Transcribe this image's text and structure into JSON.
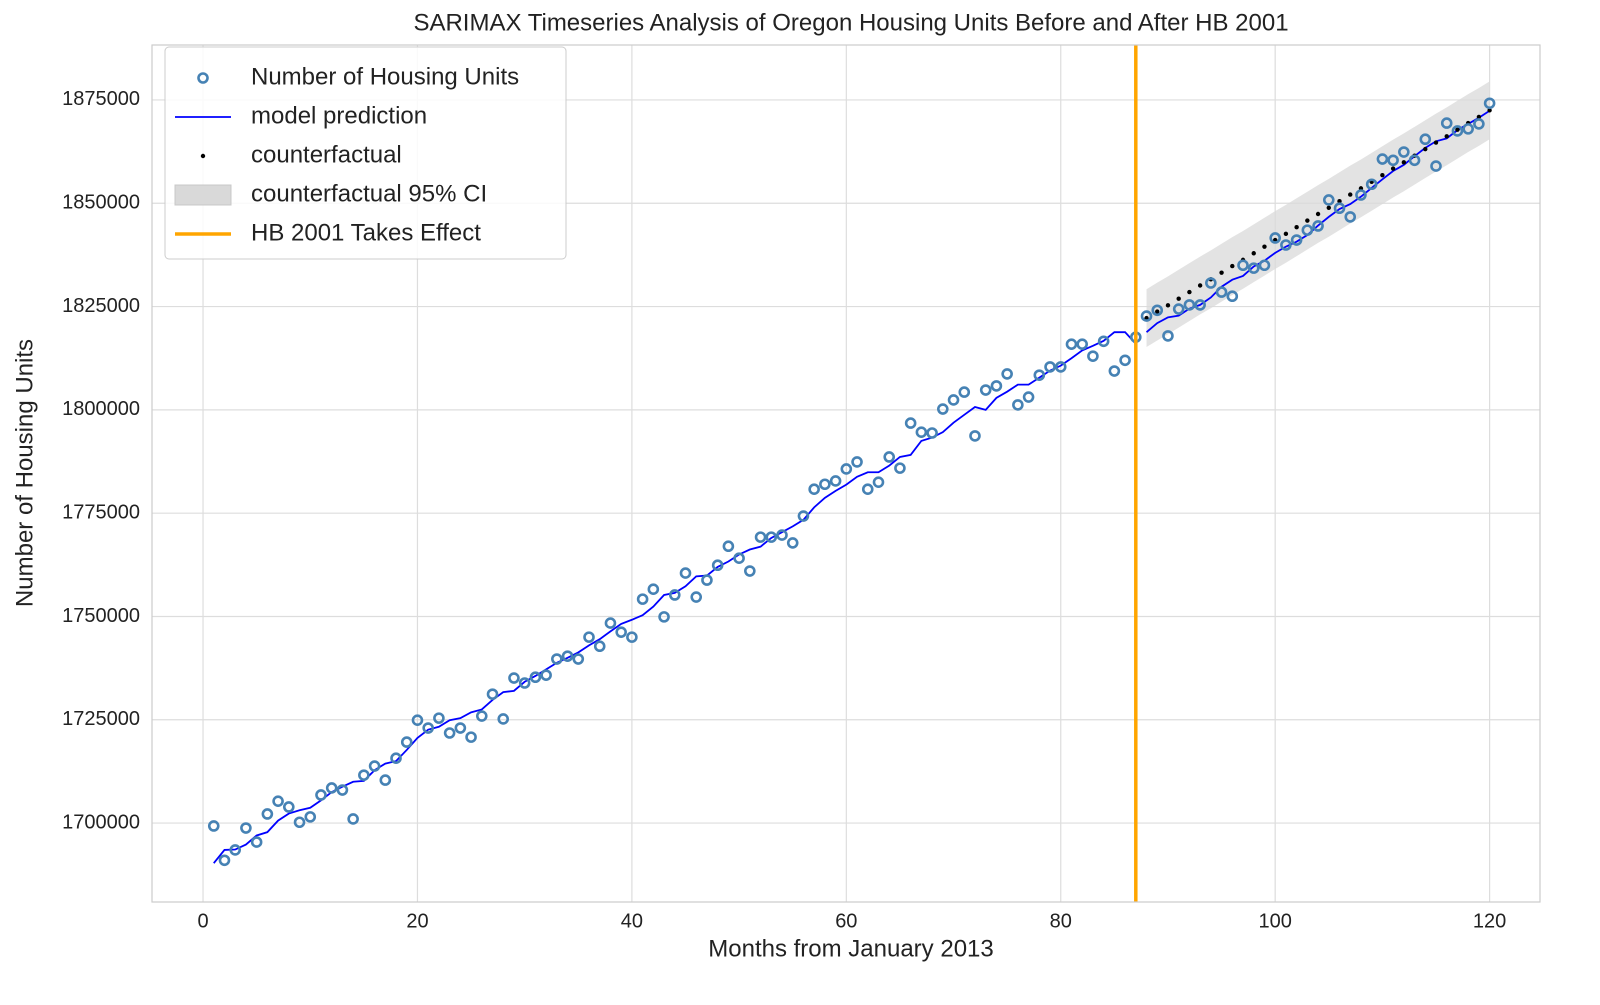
{
  "chart_data": {
    "type": "timeseries",
    "title": "SARIMAX Timeseries Analysis of Oregon Housing Units Before and After HB 2001",
    "xlabel": "Months from January 2013",
    "ylabel": "Number of Housing Units",
    "xlim": [
      -4.76,
      124.7
    ],
    "ylim": [
      1680900,
      1888300
    ],
    "xticks": [
      0,
      20,
      40,
      60,
      80,
      100,
      120
    ],
    "yticks": [
      1700000,
      1725000,
      1750000,
      1775000,
      1800000,
      1825000,
      1850000,
      1875000
    ],
    "grid": true,
    "legend": "upper left",
    "x": [
      1,
      2,
      3,
      4,
      5,
      6,
      7,
      8,
      9,
      10,
      11,
      12,
      13,
      14,
      15,
      16,
      17,
      18,
      19,
      20,
      21,
      22,
      23,
      24,
      25,
      26,
      27,
      28,
      29,
      30,
      31,
      32,
      33,
      34,
      35,
      36,
      37,
      38,
      39,
      40,
      41,
      42,
      43,
      44,
      45,
      46,
      47,
      48,
      49,
      50,
      51,
      52,
      53,
      54,
      55,
      56,
      57,
      58,
      59,
      60,
      61,
      62,
      63,
      64,
      65,
      66,
      67,
      68,
      69,
      70,
      71,
      72,
      73,
      74,
      75,
      76,
      77,
      78,
      79,
      80,
      81,
      82,
      83,
      84,
      85,
      86,
      87,
      88,
      89,
      90,
      91,
      92,
      93,
      94,
      95,
      96,
      97,
      98,
      99,
      100,
      101,
      102,
      103,
      104,
      105,
      106,
      107,
      108,
      109,
      110,
      111,
      112,
      113,
      114,
      115,
      116,
      117,
      118,
      119,
      120
    ],
    "series": [
      {
        "name": "Number of Housing Units",
        "type": "scatter",
        "color": "#4682b4",
        "values": [
          1699300,
          1691000,
          1693500,
          1698800,
          1695400,
          1702200,
          1705300,
          1703900,
          1700200,
          1701500,
          1706800,
          1708500,
          1708000,
          1701000,
          1711600,
          1713800,
          1710400,
          1715700,
          1719600,
          1724900,
          1723000,
          1725400,
          1721800,
          1723000,
          1720800,
          1725900,
          1731200,
          1725200,
          1735100,
          1733900,
          1735300,
          1735800,
          1739700,
          1740400,
          1739700,
          1745000,
          1742800,
          1748400,
          1746200,
          1745000,
          1754200,
          1756600,
          1749900,
          1755200,
          1760500,
          1754700,
          1758800,
          1762400,
          1767000,
          1764100,
          1761000,
          1769200,
          1769200,
          1769700,
          1767800,
          1774300,
          1780800,
          1782000,
          1782800,
          1785700,
          1787400,
          1780800,
          1782500,
          1788600,
          1785900,
          1796800,
          1794600,
          1794400,
          1800200,
          1802400,
          1804300,
          1793700,
          1804800,
          1805800,
          1808700,
          1801200,
          1803100,
          1808400,
          1810400,
          1810400,
          1815900,
          1815900,
          1813000,
          1816600,
          1809400,
          1812000,
          1817600,
          1822700,
          1824100,
          1817900,
          1824400,
          1825400,
          1825400,
          1830700,
          1828500,
          1827500,
          1835000,
          1834300,
          1835000,
          1841600,
          1839900,
          1841100,
          1843500,
          1844500,
          1850800,
          1848800,
          1846700,
          1852000,
          1854600,
          1860700,
          1860400,
          1862400,
          1860400,
          1865500,
          1859000,
          1869400,
          1867500,
          1868000,
          1869200,
          1874200
        ]
      },
      {
        "name": "model prediction",
        "type": "line",
        "color": "#0000ff",
        "values": [
          1690300,
          1693500,
          1693600,
          1694800,
          1697000,
          1697800,
          1700600,
          1702300,
          1703100,
          1703700,
          1705500,
          1707500,
          1708800,
          1710000,
          1710200,
          1712800,
          1714400,
          1715000,
          1717700,
          1720600,
          1722600,
          1723300,
          1724900,
          1725400,
          1726800,
          1727500,
          1729800,
          1731700,
          1732000,
          1734200,
          1735600,
          1737200,
          1738800,
          1740000,
          1741300,
          1743000,
          1744500,
          1746400,
          1748200,
          1749200,
          1750300,
          1752400,
          1755200,
          1755700,
          1757300,
          1759700,
          1759900,
          1762000,
          1763300,
          1765000,
          1766200,
          1766900,
          1769000,
          1770400,
          1771800,
          1773400,
          1776400,
          1778700,
          1780400,
          1781900,
          1783800,
          1784900,
          1784900,
          1786500,
          1788600,
          1789100,
          1792500,
          1793300,
          1794600,
          1796900,
          1798800,
          1800700,
          1800000,
          1802900,
          1804400,
          1806100,
          1806100,
          1807800,
          1809500,
          1810700,
          1812500,
          1814400,
          1815500,
          1816700,
          1818800,
          1818800,
          1816000,
          1818800,
          1821000,
          1822400,
          1822800,
          1824500,
          1825400,
          1827200,
          1829800,
          1831500,
          1832400,
          1834700,
          1836100,
          1838000,
          1839500,
          1840700,
          1842300,
          1844600,
          1846700,
          1848600,
          1849800,
          1851600,
          1853700,
          1855800,
          1857800,
          1859300,
          1861400,
          1863400,
          1865000,
          1865700,
          1867700,
          1869200,
          1870700,
          1872400
        ]
      },
      {
        "name": "counterfactual",
        "type": "dots",
        "color": "#000000",
        "x": [
          88,
          89,
          90,
          91,
          92,
          93,
          94,
          95,
          96,
          97,
          98,
          99,
          100,
          101,
          102,
          103,
          104,
          105,
          106,
          107,
          108,
          109,
          110,
          111,
          112,
          113,
          114,
          115,
          116,
          117,
          118,
          119,
          120
        ],
        "values": [
          1822200,
          1823800,
          1825300,
          1826900,
          1828500,
          1830100,
          1831600,
          1833200,
          1834800,
          1836300,
          1837900,
          1839500,
          1841100,
          1842600,
          1844200,
          1845800,
          1847400,
          1848900,
          1850500,
          1852100,
          1853600,
          1855200,
          1856800,
          1858400,
          1859900,
          1861500,
          1863100,
          1864700,
          1866200,
          1867800,
          1869400,
          1870900,
          1872500
        ]
      },
      {
        "name": "counterfactual 95% CI",
        "type": "band",
        "color": "#d9d9d9",
        "x": [
          88,
          89,
          90,
          91,
          92,
          93,
          94,
          95,
          96,
          97,
          98,
          99,
          100,
          101,
          102,
          103,
          104,
          105,
          106,
          107,
          108,
          109,
          110,
          111,
          112,
          113,
          114,
          115,
          116,
          117,
          118,
          119,
          120
        ],
        "lower": [
          1815200,
          1816800,
          1818300,
          1819900,
          1821500,
          1823100,
          1824600,
          1826200,
          1827800,
          1829300,
          1830900,
          1832500,
          1834100,
          1835600,
          1837200,
          1838800,
          1840400,
          1841900,
          1843500,
          1845100,
          1846600,
          1848200,
          1849800,
          1851400,
          1852900,
          1854500,
          1856100,
          1857700,
          1859200,
          1860800,
          1862400,
          1863900,
          1865500
        ],
        "upper": [
          1829200,
          1830800,
          1832300,
          1833900,
          1835500,
          1837100,
          1838600,
          1840200,
          1841800,
          1843300,
          1844900,
          1846500,
          1848100,
          1849600,
          1851200,
          1852800,
          1854400,
          1855900,
          1857500,
          1859100,
          1860600,
          1862200,
          1863800,
          1865400,
          1866900,
          1868500,
          1870100,
          1871700,
          1873200,
          1874800,
          1876400,
          1877900,
          1879500
        ]
      }
    ],
    "vline": {
      "name": "HB 2001 Takes Effect",
      "x": 87,
      "color": "#ffa500"
    }
  }
}
